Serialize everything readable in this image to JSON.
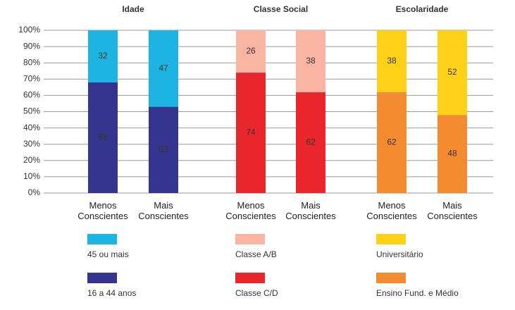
{
  "chart_data": {
    "type": "bar",
    "stacked": true,
    "ylim": [
      0,
      100
    ],
    "yticks": [
      {
        "value": 0,
        "label": "0%"
      },
      {
        "value": 10,
        "label": "10%"
      },
      {
        "value": 20,
        "label": "20%"
      },
      {
        "value": 30,
        "label": "30%"
      },
      {
        "value": 40,
        "label": "40%"
      },
      {
        "value": 50,
        "label": "50%"
      },
      {
        "value": 60,
        "label": "60%"
      },
      {
        "value": 70,
        "label": "70%"
      },
      {
        "value": 80,
        "label": "80%"
      },
      {
        "value": 90,
        "label": "90%"
      },
      {
        "value": 100,
        "label": "100%"
      }
    ],
    "grid": true,
    "groups": [
      {
        "title": "Idade",
        "categories": [
          "Menos Conscientes",
          "Mais Conscientes"
        ],
        "series": [
          {
            "name": "16 a 44 anos",
            "color": "#35348f",
            "values": [
              68,
              53
            ]
          },
          {
            "name": "45 ou mais",
            "color": "#1eb4e2",
            "values": [
              32,
              47
            ]
          }
        ]
      },
      {
        "title": "Classe Social",
        "categories": [
          "Menos Conscientes",
          "Mais Conscientes"
        ],
        "series": [
          {
            "name": "Classe C/D",
            "color": "#e8262b",
            "values": [
              74,
              62
            ]
          },
          {
            "name": "Classe A/B",
            "color": "#f9b5a2",
            "values": [
              26,
              38
            ]
          }
        ]
      },
      {
        "title": "Escolaridade",
        "categories": [
          "Menos Conscientes",
          "Mais Conscientes"
        ],
        "series": [
          {
            "name": "Ensino Fund. e Médio",
            "color": "#f58b30",
            "values": [
              62,
              48
            ]
          },
          {
            "name": "Universitário",
            "color": "#fdd118",
            "values": [
              38,
              52
            ]
          }
        ]
      }
    ]
  }
}
